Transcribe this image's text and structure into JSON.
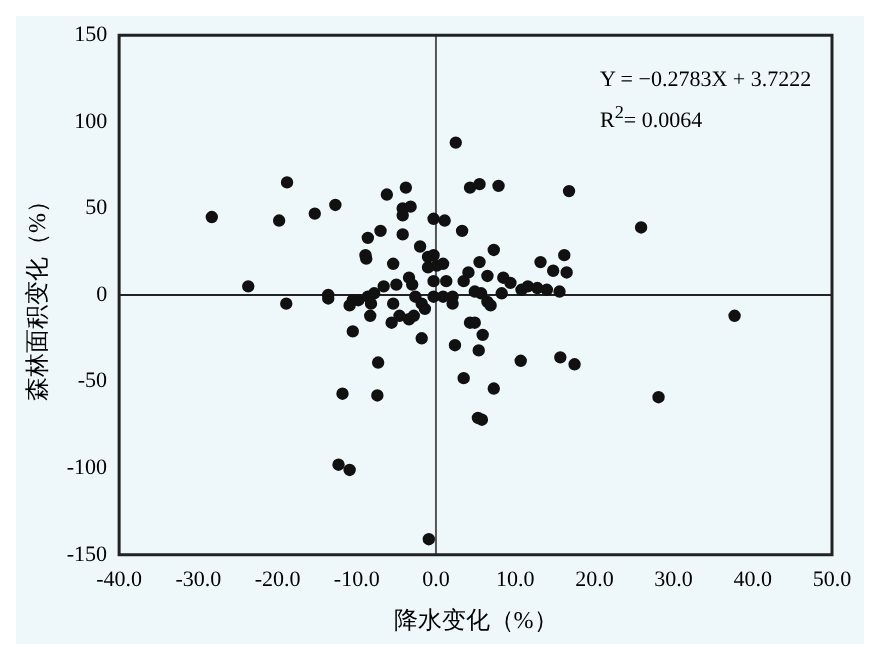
{
  "chart_data": {
    "type": "scatter",
    "xlabel": "降水变化（%）",
    "ylabel": "森林面积变化（%）",
    "annotations": [
      "Y = −0.2783X + 3.7222",
      "R$^{2}$= 0.0064"
    ],
    "xlim": [
      -40,
      50
    ],
    "ylim": [
      -150,
      150
    ],
    "xticks": [
      {
        "value": -40,
        "label": "-40.0"
      },
      {
        "value": -30,
        "label": "-30.0"
      },
      {
        "value": -20,
        "label": "-20.0"
      },
      {
        "value": -10,
        "label": "-10.0"
      },
      {
        "value": 0,
        "label": "0.0"
      },
      {
        "value": 10,
        "label": "10.0"
      },
      {
        "value": 20,
        "label": "20.0"
      },
      {
        "value": 30,
        "label": "30.0"
      },
      {
        "value": 40,
        "label": "40.0"
      },
      {
        "value": 50,
        "label": "50.0"
      }
    ],
    "yticks": [
      -150,
      -100,
      -50,
      0,
      50,
      100,
      150
    ],
    "grid": false,
    "legend": false,
    "marker": "circle",
    "ref_lines": [
      {
        "axis": "x",
        "value": 0,
        "color": "#555555"
      },
      {
        "axis": "y",
        "value": 0,
        "color": "#222222"
      }
    ],
    "series": [
      {
        "color": "#111111",
        "x": [
          -28.3,
          -23.7,
          -18.9,
          -18.8,
          -19.8,
          -15.3,
          -12.7,
          -13.6,
          -13.6,
          -7.0,
          -8.6,
          -8.9,
          -8.8,
          -6.2,
          -3.8,
          -4.2,
          -3.2,
          -4.2,
          -4.2,
          -5.4,
          -2.0,
          -0.3,
          1.1,
          2.5,
          3.3,
          -1.0,
          -0.3,
          -1.0,
          0.1,
          0.9,
          -0.3,
          1.3,
          -3.4,
          -3.0,
          -5.0,
          -6.6,
          -7.8,
          -10.5,
          -9.8,
          -10.9,
          -8.6,
          -8.2,
          -5.4,
          -2.6,
          -1.8,
          -0.3,
          0.9,
          2.1,
          -10.5,
          -8.3,
          -5.6,
          -4.6,
          -3.4,
          -2.8,
          -1.8,
          -1.4,
          -7.3,
          -11.8,
          -7.4,
          -12.3,
          -10.9,
          -0.9,
          2.4,
          3.5,
          4.3,
          5.5,
          7.9,
          16.8,
          25.9,
          7.3,
          5.5,
          4.1,
          3.5,
          6.5,
          8.5,
          9.4,
          13.2,
          16.2,
          14.8,
          16.5,
          10.8,
          11.6,
          12.8,
          14.0,
          15.6,
          4.9,
          5.7,
          6.5,
          6.9,
          2.1,
          8.3,
          37.7,
          4.3,
          4.9,
          5.9,
          5.4,
          10.7,
          15.7,
          17.5,
          7.3,
          5.3,
          5.8,
          28.1
        ],
        "values": [
          45,
          5,
          -5,
          65,
          43,
          47,
          52,
          -2,
          0,
          37,
          33,
          23,
          21,
          58,
          62,
          50,
          51,
          46,
          35,
          18,
          28,
          44,
          43,
          88,
          37,
          22,
          23,
          16,
          17,
          18,
          8,
          8,
          10,
          6,
          6,
          5,
          1,
          -3,
          -3,
          -6,
          -1,
          -5,
          -5,
          -1,
          -5,
          -1,
          -1,
          -1,
          -21,
          -12,
          -16,
          -12,
          -14,
          -12,
          -25,
          -8,
          -39,
          -57,
          -58,
          -98,
          -101,
          -141,
          -29,
          -48,
          62,
          64,
          63,
          60,
          39,
          26,
          19,
          13,
          8,
          11,
          10,
          7,
          19,
          23,
          14,
          13,
          3,
          5,
          4,
          3,
          2,
          2,
          1,
          -4,
          -6,
          -5,
          1,
          -12,
          -16,
          -16,
          -23,
          -32,
          -38,
          -36,
          -40,
          -54,
          -71,
          -72,
          -59
        ]
      }
    ]
  }
}
